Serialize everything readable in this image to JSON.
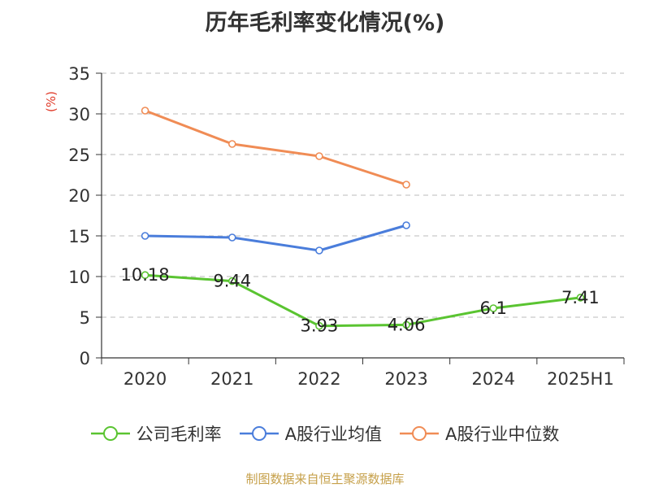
{
  "chart_data": {
    "type": "line",
    "title": "历年毛利率变化情况(%)",
    "ylabel": "(%)",
    "xlabel": "",
    "categories": [
      "2020",
      "2021",
      "2022",
      "2023",
      "2024",
      "2025H1"
    ],
    "ylim": [
      0,
      35
    ],
    "yticks": [
      0,
      5,
      10,
      15,
      20,
      25,
      30,
      35
    ],
    "grid": true,
    "legend_position": "bottom",
    "series": [
      {
        "name": "公司毛利率",
        "color": "#5ac431",
        "values": [
          10.18,
          9.44,
          3.93,
          4.06,
          6.1,
          7.41
        ],
        "labels": [
          "10.18",
          "9.44",
          "3.93",
          "4.06",
          "6.1",
          "7.41"
        ]
      },
      {
        "name": "A股行业均值",
        "color": "#4a7ddb",
        "values": [
          15.0,
          14.8,
          13.2,
          16.3,
          null,
          null
        ]
      },
      {
        "name": "A股行业中位数",
        "color": "#f08c55",
        "values": [
          30.4,
          26.3,
          24.8,
          21.3,
          null,
          null
        ]
      }
    ]
  },
  "source": "制图数据来自恒生聚源数据库"
}
